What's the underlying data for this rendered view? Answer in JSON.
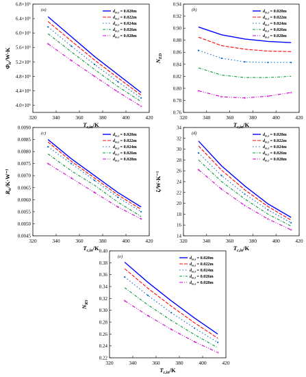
{
  "colors": [
    "#0000ff",
    "#ff0000",
    "#0066cc",
    "#009933",
    "#cc00cc"
  ],
  "chart_data": [
    {
      "type": "line",
      "panel_label": "(a)",
      "xlabel": "T_c,in/K",
      "ylabel": "Φ_tc/W·K",
      "xlim": [
        320,
        420
      ],
      "ylim": [
        3800000,
        6800000
      ],
      "x_ticks": [
        320,
        340,
        360,
        380,
        400,
        420
      ],
      "y_ticks": [
        4000000,
        4400000,
        4800000,
        5200000,
        5600000,
        6000000,
        6400000,
        6800000
      ],
      "y_tick_labels": [
        "4.0×10⁶",
        "4.4×10⁶",
        "4.8×10⁶",
        "5.2×10⁶",
        "5.6×10⁶",
        "6.0×10⁶",
        "6.4×10⁶",
        "6.8×10⁶"
      ],
      "legend_position": "top-right",
      "x": [
        333,
        353,
        373,
        393,
        413
      ],
      "series": [
        {
          "name": "d_m,t = 0.020m",
          "values": [
            6450000,
            5900000,
            5350000,
            4850000,
            4350000
          ]
        },
        {
          "name": "d_m,t = 0.022m",
          "values": [
            6320000,
            5780000,
            5250000,
            4760000,
            4280000
          ]
        },
        {
          "name": "d_m,t = 0.024m",
          "values": [
            6170000,
            5640000,
            5130000,
            4650000,
            4200000
          ]
        },
        {
          "name": "d_m,t = 0.026m",
          "values": [
            5980000,
            5480000,
            4990000,
            4520000,
            4100000
          ]
        },
        {
          "name": "d_m,t = 0.028m",
          "values": [
            5700000,
            5240000,
            4800000,
            4370000,
            3970000
          ]
        }
      ]
    },
    {
      "type": "line",
      "panel_label": "(b)",
      "xlabel": "T_c,in/K",
      "ylabel": "N_ED",
      "xlim": [
        320,
        420
      ],
      "ylim": [
        0.76,
        0.94
      ],
      "x_ticks": [
        320,
        340,
        360,
        380,
        400,
        420
      ],
      "y_ticks": [
        0.76,
        0.78,
        0.8,
        0.82,
        0.84,
        0.86,
        0.88,
        0.9,
        0.92,
        0.94
      ],
      "y_tick_labels": [
        "0.76",
        "0.78",
        "0.80",
        "0.82",
        "0.84",
        "0.86",
        "0.88",
        "0.90",
        "0.92",
        "0.94"
      ],
      "legend_position": "top-right",
      "x": [
        333,
        353,
        373,
        393,
        413
      ],
      "series": [
        {
          "name": "d_m,t = 0.020m",
          "values": [
            0.902,
            0.889,
            0.882,
            0.878,
            0.876
          ]
        },
        {
          "name": "d_m,t = 0.022m",
          "values": [
            0.885,
            0.871,
            0.865,
            0.862,
            0.861
          ]
        },
        {
          "name": "d_m,t = 0.024m",
          "values": [
            0.863,
            0.85,
            0.844,
            0.843,
            0.843
          ]
        },
        {
          "name": "d_m,t = 0.026m",
          "values": [
            0.834,
            0.822,
            0.818,
            0.818,
            0.82
          ]
        },
        {
          "name": "d_m,t = 0.028m",
          "values": [
            0.796,
            0.786,
            0.784,
            0.787,
            0.793
          ]
        }
      ]
    },
    {
      "type": "line",
      "panel_label": "(c)",
      "xlabel": "T_c,in/K",
      "ylabel": "R_tc/K·W⁻¹",
      "xlim": [
        320,
        420
      ],
      "ylim": [
        0.0045,
        0.009
      ],
      "x_ticks": [
        320,
        340,
        360,
        380,
        400,
        420
      ],
      "y_ticks": [
        0.0045,
        0.005,
        0.0055,
        0.006,
        0.0065,
        0.007,
        0.0075,
        0.008,
        0.0085,
        0.009
      ],
      "y_tick_labels": [
        "0.0045",
        "0.0050",
        "0.0055",
        "0.0060",
        "0.0065",
        "0.0070",
        "0.0075",
        "0.0080",
        "0.0085",
        "0.0090"
      ],
      "legend_position": "top-right",
      "x": [
        333,
        353,
        373,
        393,
        413
      ],
      "series": [
        {
          "name": "d_m,t = 0.020m",
          "values": [
            0.0085,
            0.0077,
            0.007,
            0.0063,
            0.0057
          ]
        },
        {
          "name": "d_m,t = 0.022m",
          "values": [
            0.0084,
            0.0076,
            0.0069,
            0.0062,
            0.0056
          ]
        },
        {
          "name": "d_m,t = 0.024m",
          "values": [
            0.0082,
            0.0075,
            0.0068,
            0.0061,
            0.0055
          ]
        },
        {
          "name": "d_m,t = 0.026m",
          "values": [
            0.0079,
            0.0072,
            0.0066,
            0.0059,
            0.0053
          ]
        },
        {
          "name": "d_m,t = 0.028m",
          "values": [
            0.0075,
            0.0069,
            0.0063,
            0.0057,
            0.0052
          ]
        }
      ]
    },
    {
      "type": "line",
      "panel_label": "(d)",
      "xlabel": "T_c,in/K",
      "ylabel": "ζ/W·K⁻¹",
      "xlim": [
        320,
        420
      ],
      "ylim": [
        14,
        34
      ],
      "x_ticks": [
        320,
        340,
        360,
        380,
        400,
        420
      ],
      "y_ticks": [
        14,
        16,
        18,
        20,
        22,
        24,
        26,
        28,
        30,
        32,
        34
      ],
      "y_tick_labels": [
        "14",
        "16",
        "18",
        "20",
        "22",
        "24",
        "26",
        "28",
        "30",
        "32",
        "34"
      ],
      "legend_position": "top-right",
      "x": [
        333,
        353,
        373,
        393,
        413
      ],
      "series": [
        {
          "name": "d_m,t = 0.020m",
          "values": [
            31.5,
            26.9,
            23.2,
            19.9,
            17.4
          ]
        },
        {
          "name": "d_m,t = 0.022m",
          "values": [
            30.6,
            26.1,
            22.5,
            19.4,
            16.9
          ]
        },
        {
          "name": "d_m,t = 0.024m",
          "values": [
            29.3,
            25.1,
            21.7,
            18.8,
            16.4
          ]
        },
        {
          "name": "d_m,t = 0.026m",
          "values": [
            28.0,
            24.0,
            20.8,
            18.0,
            15.8
          ]
        },
        {
          "name": "d_m,t = 0.028m",
          "values": [
            26.2,
            22.6,
            19.6,
            17.1,
            15.1
          ]
        }
      ]
    },
    {
      "type": "line",
      "panel_label": "(e)",
      "xlabel": "T_c,in/K",
      "ylabel": "N_RS",
      "xlim": [
        320,
        420
      ],
      "ylim": [
        0.22,
        0.4
      ],
      "x_ticks": [
        320,
        340,
        360,
        380,
        400,
        420
      ],
      "y_ticks": [
        0.22,
        0.24,
        0.26,
        0.28,
        0.3,
        0.32,
        0.34,
        0.36,
        0.38,
        0.4
      ],
      "y_tick_labels": [
        "0.22",
        "0.24",
        "0.26",
        "0.28",
        "0.30",
        "0.32",
        "0.34",
        "0.36",
        "0.38",
        "0.40"
      ],
      "legend_position": "top-right",
      "x": [
        333,
        353,
        373,
        393,
        413
      ],
      "series": [
        {
          "name": "d_m,t = 0.020m",
          "values": [
            0.381,
            0.347,
            0.316,
            0.287,
            0.26
          ]
        },
        {
          "name": "d_m,t = 0.022m",
          "values": [
            0.37,
            0.337,
            0.307,
            0.279,
            0.253
          ]
        },
        {
          "name": "d_m,t = 0.024m",
          "values": [
            0.356,
            0.325,
            0.296,
            0.27,
            0.246
          ]
        },
        {
          "name": "d_m,t = 0.026m",
          "values": [
            0.338,
            0.309,
            0.283,
            0.259,
            0.237
          ]
        },
        {
          "name": "d_m,t = 0.028m",
          "values": [
            0.316,
            0.291,
            0.268,
            0.247,
            0.229
          ]
        }
      ]
    }
  ]
}
